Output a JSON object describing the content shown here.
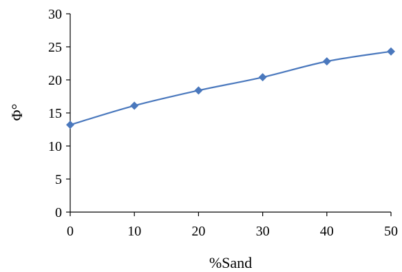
{
  "chart_data": {
    "type": "line",
    "title": "",
    "xlabel": "%Sand",
    "ylabel": "Φ°",
    "x": [
      0,
      10,
      20,
      30,
      40,
      50
    ],
    "series": [
      {
        "values": [
          13.2,
          16.1,
          18.4,
          20.4,
          22.8,
          24.3
        ]
      }
    ],
    "xlim": [
      0,
      50
    ],
    "ylim": [
      0,
      30
    ],
    "xticks": [
      0,
      10,
      20,
      30,
      40,
      50
    ],
    "yticks": [
      0,
      5,
      10,
      15,
      20,
      25,
      30
    ],
    "xtick_labels": [
      "0",
      "10",
      "20",
      "30",
      "40",
      "50"
    ],
    "ytick_labels": [
      "0",
      "5",
      "10",
      "15",
      "20",
      "25",
      "30"
    ],
    "grid": false,
    "legend": "none",
    "marker": "diamond",
    "line_color": "#4a78bd"
  }
}
